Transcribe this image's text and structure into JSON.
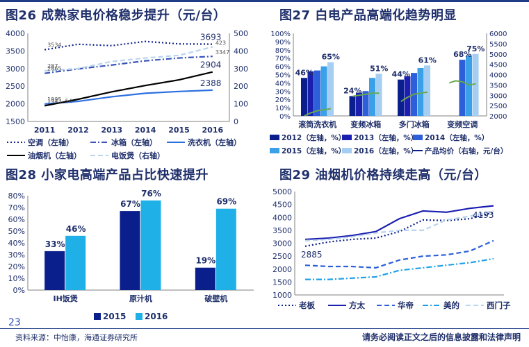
{
  "figures": {
    "fig26": {
      "title": "图26 成熟家电价格稳步提升（元/台）"
    },
    "fig27": {
      "title": "图27 白电产品高端化趋势明显"
    },
    "fig28": {
      "title": "图28 小家电高端产品占比快速提升"
    },
    "fig29": {
      "title": "图29 油烟机价格持续走高（元/台）"
    }
  },
  "footer": {
    "page_number": "23",
    "source": "资料来源：中怡康，海通证券研究所",
    "disclaimer": "请务必阅读正文之后的信息披露和法律声明"
  },
  "colors": {
    "navy": "#0b1f8c",
    "dark_blue": "#1b1fb0",
    "royal_blue": "#2c5fd9",
    "sky_blue": "#3aa0e8",
    "light_blue": "#a6cdf2",
    "teal": "#20b0e8",
    "green": "#6aa84f",
    "black": "#000000"
  },
  "chart_data": [
    {
      "id": "fig26",
      "type": "line",
      "x": [
        "2011",
        "2012",
        "2013",
        "2014",
        "2015",
        "2016"
      ],
      "ylim_left": [
        1500,
        4000
      ],
      "yticks_left": [
        "1500",
        "2000",
        "2500",
        "3000",
        "3500",
        "4000"
      ],
      "ylim_right": [
        0,
        500
      ],
      "yticks_right": [
        "0",
        "100",
        "200",
        "300",
        "400",
        "500"
      ],
      "series": [
        {
          "name": "空调（左轴）",
          "axis": "left",
          "style": "dotted",
          "color": "#0b1f8c",
          "values": [
            3534,
            3690,
            3650,
            3770,
            3700,
            3693
          ]
        },
        {
          "name": "冰箱（左轴）",
          "axis": "left",
          "style": "dashdot",
          "color": "#3a54b8",
          "values": [
            2865,
            2990,
            3100,
            3220,
            3300,
            3347
          ]
        },
        {
          "name": "洗衣机（左轴）",
          "axis": "left",
          "style": "solid",
          "color": "#2c6fe0",
          "values": [
            1995,
            2070,
            2200,
            2300,
            2350,
            2388
          ]
        },
        {
          "name": "油烟机（左轴）",
          "axis": "left",
          "style": "solid",
          "color": "#000000",
          "values": [
            1943.54,
            2130,
            2340,
            2520,
            2680,
            2904
          ]
        },
        {
          "name": "电饭煲（右轴）",
          "axis": "right",
          "style": "dashed",
          "color": "#b8d4f0",
          "values": [
            287,
            300,
            340,
            360,
            375,
            423
          ]
        }
      ],
      "data_labels": [
        {
          "text": "3534",
          "series": 0,
          "index": 0
        },
        {
          "text": "3693",
          "series": 0,
          "index": 5
        },
        {
          "text": "2865",
          "series": 1,
          "index": 0
        },
        {
          "text": "3347",
          "series": 1,
          "index": 5
        },
        {
          "text": "1995",
          "series": 2,
          "index": 0
        },
        {
          "text": "2388",
          "series": 2,
          "index": 5
        },
        {
          "text": "1943. 54",
          "series": 3,
          "index": 0
        },
        {
          "text": "2904",
          "series": 3,
          "index": 5
        },
        {
          "text": "287",
          "series": 4,
          "index": 0
        },
        {
          "text": "423",
          "series": 4,
          "index": 5
        }
      ]
    },
    {
      "id": "fig27",
      "type": "bar",
      "categories": [
        "滚筒洗衣机",
        "变频冰箱",
        "多门冰箱",
        "变频空调"
      ],
      "ylim_left": [
        0,
        100
      ],
      "yticks_left": [
        "0%",
        "10%",
        "20%",
        "30%",
        "40%",
        "50%",
        "60%",
        "70%",
        "80%",
        "90%",
        "100%"
      ],
      "ylim_right": [
        2000,
        6000
      ],
      "yticks_right": [
        "2000",
        "2500",
        "3000",
        "3500",
        "4000",
        "4500",
        "5000",
        "5500",
        "6000"
      ],
      "series": [
        {
          "name": "2012（左轴，%）",
          "color": "#0b1f8c",
          "values": [
            46,
            24,
            44,
            null
          ]
        },
        {
          "name": "2013（左轴，%）",
          "color": "#1b1fb0",
          "values": [
            54,
            28,
            48,
            null
          ]
        },
        {
          "name": "2014（左轴，%）",
          "color": "#2c5fd9",
          "values": [
            55,
            30,
            52,
            68
          ]
        },
        {
          "name": "2015（左轴，%）",
          "color": "#3aa0e8",
          "values": [
            60,
            46,
            58,
            73
          ]
        },
        {
          "name": "2016（左轴，%）",
          "color": "#a6cdf2",
          "values": [
            65,
            51,
            61,
            75
          ]
        }
      ],
      "line_series": {
        "name": "产品均价（右轴，元/台）",
        "color": "#6aa84f",
        "groups": [
          [
            2000,
            2150,
            2250,
            2300,
            2350
          ],
          [
            2950,
            3000,
            3050,
            3100,
            3100
          ],
          [
            2700,
            2900,
            3050,
            3100,
            3150
          ],
          [
            3600,
            3700,
            3650,
            3500,
            3550
          ]
        ]
      },
      "bar_labels": [
        {
          "text": "46%",
          "category": 0,
          "series": 0
        },
        {
          "text": "65%",
          "category": 0,
          "series": 4
        },
        {
          "text": "24%",
          "category": 1,
          "series": 0
        },
        {
          "text": "51%",
          "category": 1,
          "series": 4
        },
        {
          "text": "44%",
          "category": 2,
          "series": 0
        },
        {
          "text": "61%",
          "category": 2,
          "series": 4
        },
        {
          "text": "68%",
          "category": 3,
          "series": 2
        },
        {
          "text": "75%",
          "category": 3,
          "series": 4
        }
      ]
    },
    {
      "id": "fig28",
      "type": "bar",
      "categories": [
        "IH饭煲",
        "原汁机",
        "破壁机"
      ],
      "ylim": [
        0,
        80
      ],
      "yticks": [
        "0%",
        "10%",
        "20%",
        "30%",
        "40%",
        "50%",
        "60%",
        "70%",
        "80%"
      ],
      "series": [
        {
          "name": "2015",
          "color": "#0b1f8c",
          "values": [
            33,
            67,
            19
          ]
        },
        {
          "name": "2016",
          "color": "#20b0e8",
          "values": [
            46,
            76,
            69
          ]
        }
      ],
      "bar_labels": [
        "33%",
        "46%",
        "67%",
        "76%",
        "19%",
        "69%"
      ]
    },
    {
      "id": "fig29",
      "type": "line",
      "x_count": 9,
      "ylim": [
        1000,
        5000
      ],
      "yticks": [
        "1000",
        "1500",
        "2000",
        "2500",
        "3000",
        "3500",
        "4000",
        "4500",
        "5000"
      ],
      "series": [
        {
          "name": "老板",
          "style": "dotted",
          "color": "#0b1f8c",
          "values": [
            2885,
            3050,
            3150,
            3200,
            3450,
            3900,
            3880,
            3950,
            4193
          ]
        },
        {
          "name": "方太",
          "style": "solid",
          "color": "#1b1fb0",
          "values": [
            3150,
            3200,
            3300,
            3450,
            3950,
            4250,
            4200,
            4350,
            4450
          ]
        },
        {
          "name": "华帝",
          "style": "dashed",
          "color": "#2c5fd9",
          "values": [
            2150,
            2100,
            2100,
            2050,
            2350,
            2500,
            2550,
            2700,
            3100
          ]
        },
        {
          "name": "美的",
          "style": "dashdot",
          "color": "#20a0e8",
          "values": [
            1600,
            1600,
            1650,
            1700,
            1950,
            2050,
            2150,
            2250,
            2400
          ]
        },
        {
          "name": "西门子",
          "style": "dashed",
          "color": "#b8d4f0",
          "values": [
            3100,
            3150,
            3250,
            3400,
            3500,
            3500,
            3900,
            4050,
            4250
          ]
        }
      ],
      "data_labels": [
        {
          "text": "2885",
          "series": 0,
          "index": 0
        },
        {
          "text": "4193",
          "series": 0,
          "index": 8
        }
      ]
    }
  ]
}
